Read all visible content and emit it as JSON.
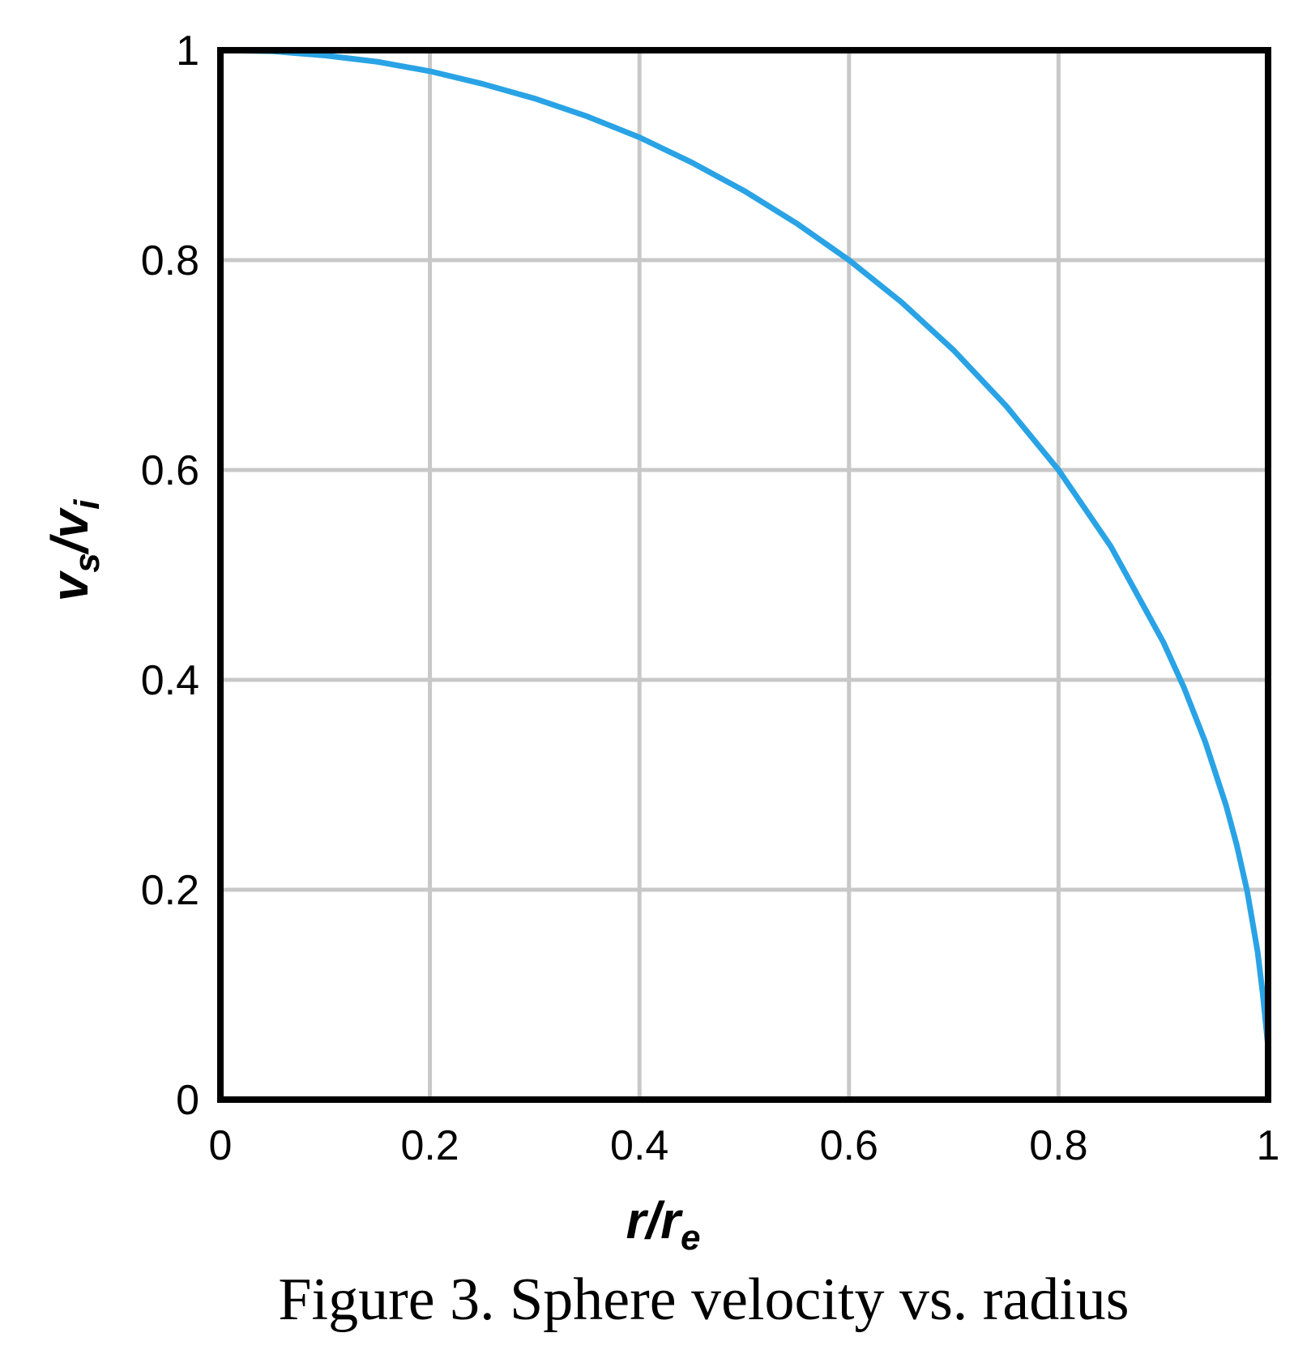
{
  "chart_data": {
    "type": "line",
    "title": "",
    "caption": "Figure 3. Sphere velocity vs. radius",
    "xlabel": {
      "main": "r/r",
      "subscript": "e"
    },
    "ylabel": {
      "part1": "v",
      "sub1": "s",
      "slash": "/",
      "part2": "v",
      "sub2": "i"
    },
    "xlim": [
      0,
      1
    ],
    "ylim": [
      0,
      1
    ],
    "xticks": [
      {
        "value": 0,
        "label": "0"
      },
      {
        "value": 0.2,
        "label": "0.2"
      },
      {
        "value": 0.4,
        "label": "0.4"
      },
      {
        "value": 0.6,
        "label": "0.6"
      },
      {
        "value": 0.8,
        "label": "0.8"
      },
      {
        "value": 1,
        "label": "1"
      }
    ],
    "yticks": [
      {
        "value": 0,
        "label": "0"
      },
      {
        "value": 0.2,
        "label": "0.2"
      },
      {
        "value": 0.4,
        "label": "0.4"
      },
      {
        "value": 0.6,
        "label": "0.6"
      },
      {
        "value": 0.8,
        "label": "0.8"
      },
      {
        "value": 1,
        "label": "1"
      }
    ],
    "grid": true,
    "legend": "none",
    "series": [
      {
        "color": "#29a3e5",
        "x": [
          0,
          0.05,
          0.1,
          0.15,
          0.2,
          0.25,
          0.3,
          0.35,
          0.4,
          0.45,
          0.5,
          0.55,
          0.6,
          0.65,
          0.7,
          0.75,
          0.8,
          0.85,
          0.9,
          0.92,
          0.94,
          0.96,
          0.97,
          0.98,
          0.99,
          0.995,
          1.0
        ],
        "y": [
          1.0,
          0.999,
          0.995,
          0.989,
          0.98,
          0.968,
          0.954,
          0.937,
          0.917,
          0.893,
          0.866,
          0.835,
          0.8,
          0.76,
          0.714,
          0.661,
          0.6,
          0.527,
          0.436,
          0.392,
          0.341,
          0.28,
          0.243,
          0.199,
          0.141,
          0.1,
          0.05
        ]
      }
    ]
  }
}
